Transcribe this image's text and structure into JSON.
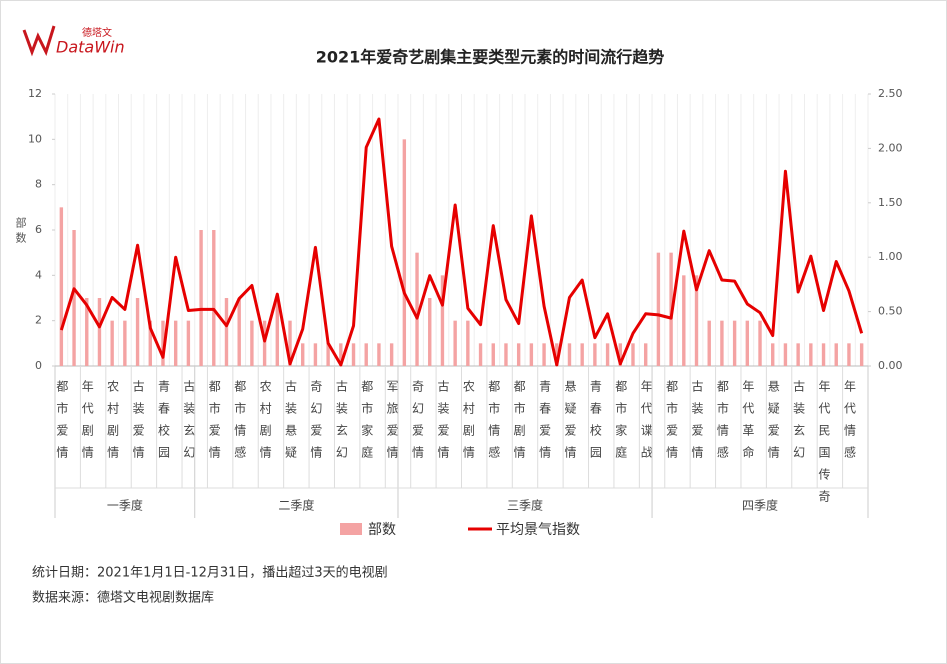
{
  "logo": {
    "brand": "德塔文",
    "name": "DataWin"
  },
  "chart_data": {
    "type": "bar",
    "title": "2021年爱奇艺剧集主要类型元素的时间流行趋势",
    "ylabel": "部数",
    "categories": [
      "都市爱情",
      null,
      "年代剧情",
      null,
      "农村剧情",
      null,
      "古装爱情",
      null,
      "青春校园",
      null,
      "古装玄幻",
      null,
      "都市爱情",
      null,
      "都市情感",
      null,
      "农村剧情",
      null,
      "古装悬疑",
      null,
      "奇幻爱情",
      null,
      "古装玄幻",
      null,
      "都市家庭",
      null,
      "军旅爱情",
      null,
      "奇幻爱情",
      null,
      "古装爱情",
      null,
      "农村剧情",
      null,
      "都市情感",
      null,
      "都市剧情",
      null,
      "青春爱情",
      null,
      "悬疑爱情",
      null,
      "青春校园",
      null,
      "都市家庭",
      null,
      "年代谍战",
      null,
      "都市爱情",
      null,
      "古装爱情",
      null,
      "都市情感",
      null,
      "年代革命",
      null,
      "悬疑爱情",
      null,
      "古装玄幻",
      null,
      "年代民国传奇",
      null,
      "年代情感",
      null
    ],
    "groups": [
      {
        "name": "一季度",
        "size": 11
      },
      {
        "name": "二季度",
        "size": 16
      },
      {
        "name": "三季度",
        "size": 20
      },
      {
        "name": "四季度",
        "size": 17
      }
    ],
    "series": [
      {
        "name": "部数",
        "type": "bar",
        "color": "#f4a3a3",
        "values": [
          7,
          6,
          3,
          3,
          2,
          2,
          3,
          2,
          2,
          2,
          2,
          6,
          6,
          3,
          3,
          2,
          2,
          3,
          2,
          1,
          1,
          1,
          1,
          1,
          1,
          1,
          1,
          10,
          5,
          3,
          4,
          2,
          2,
          1,
          1,
          1,
          1,
          1,
          1,
          1,
          1,
          1,
          1,
          1,
          1,
          1,
          1,
          5,
          5,
          4,
          4,
          2,
          2,
          2,
          2,
          2,
          1,
          1,
          1,
          1,
          1,
          1,
          1,
          1
        ]
      },
      {
        "name": "平均景气指数",
        "type": "line",
        "axis": "y2",
        "color": "#e60000",
        "values": [
          0.33,
          0.71,
          0.56,
          0.36,
          0.63,
          0.52,
          1.11,
          0.35,
          0.08,
          1.0,
          0.51,
          0.52,
          0.52,
          0.37,
          0.62,
          0.74,
          0.23,
          0.66,
          0.02,
          0.34,
          1.09,
          0.21,
          0.01,
          0.37,
          2.01,
          2.27,
          1.1,
          0.67,
          0.44,
          0.83,
          0.56,
          1.48,
          0.53,
          0.38,
          1.29,
          0.61,
          0.39,
          1.38,
          0.55,
          0.01,
          0.63,
          0.79,
          0.26,
          0.48,
          0.02,
          0.3,
          0.48,
          0.47,
          0.44,
          1.24,
          0.7,
          1.06,
          0.79,
          0.78,
          0.57,
          0.49,
          0.28,
          1.79,
          0.68,
          1.01,
          0.51,
          0.96,
          0.69,
          0.3
        ]
      }
    ],
    "ylim": [
      0,
      12
    ],
    "yticks": [
      0,
      2,
      4,
      6,
      8,
      10,
      12
    ],
    "y2lim": [
      0,
      2.5
    ],
    "y2ticks": [
      {
        "value": 0,
        "label": "0.00"
      },
      {
        "value": 0.5,
        "label": "0.50"
      },
      {
        "value": 1,
        "label": "1.00"
      },
      {
        "value": 1.5,
        "label": "1.50"
      },
      {
        "value": 2,
        "label": "2.00"
      },
      {
        "value": 2.5,
        "label": "2.50"
      }
    ],
    "grid": true,
    "legend": "bottom"
  },
  "notes": [
    "统计日期：2021年1月1日-12月31日，播出超过3天的电视剧",
    "数据来源：德塔文电视剧数据库"
  ]
}
